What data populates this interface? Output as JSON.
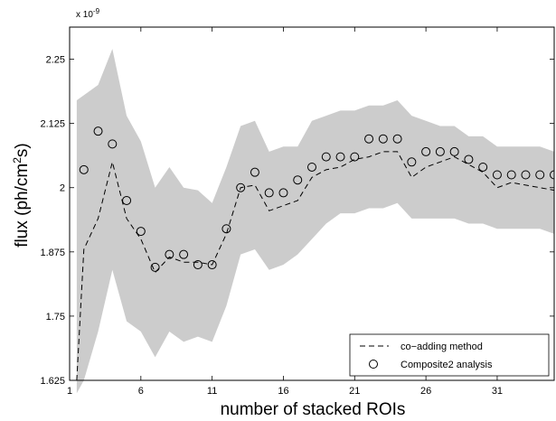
{
  "chart_data": {
    "type": "line",
    "xlabel": "number of stacked ROIs",
    "ylabel": "flux (ph/cm²s)",
    "ylabel_parts": {
      "pre": "flux (ph/cm",
      "sup": "2",
      "post": "s)"
    },
    "y_scale_note": "x 10",
    "y_scale_exp": "-9",
    "xlim": [
      1,
      35
    ],
    "ylim": [
      1.625,
      2.3125
    ],
    "x_ticks": [
      1,
      6,
      11,
      16,
      21,
      26,
      31
    ],
    "x_tick_labels": [
      "1",
      "6",
      "11",
      "16",
      "21",
      "26",
      "31"
    ],
    "y_ticks": [
      1.625,
      1.75,
      1.875,
      2,
      2.125,
      2.25
    ],
    "y_tick_labels": [
      "1.625",
      "1.75",
      "1.875",
      "2",
      "2.125",
      "2.25"
    ],
    "legend_position": "bottom-right",
    "band_color": "#cccccc",
    "band": {
      "x": [
        1.5,
        2,
        3,
        4,
        5,
        6,
        7,
        8,
        9,
        10,
        11,
        12,
        13,
        14,
        15,
        16,
        17,
        18,
        19,
        20,
        21,
        22,
        23,
        24,
        25,
        26,
        27,
        28,
        29,
        30,
        31,
        32,
        33,
        34,
        35
      ],
      "upper": [
        2.17,
        2.18,
        2.2,
        2.27,
        2.14,
        2.09,
        2.0,
        2.04,
        2.0,
        1.995,
        1.97,
        2.04,
        2.12,
        2.13,
        2.07,
        2.08,
        2.08,
        2.13,
        2.14,
        2.15,
        2.15,
        2.16,
        2.16,
        2.17,
        2.14,
        2.13,
        2.12,
        2.12,
        2.1,
        2.1,
        2.08,
        2.08,
        2.08,
        2.08,
        2.07
      ],
      "lower": [
        1.6,
        1.625,
        1.72,
        1.84,
        1.74,
        1.72,
        1.67,
        1.72,
        1.7,
        1.71,
        1.7,
        1.77,
        1.87,
        1.88,
        1.84,
        1.85,
        1.87,
        1.9,
        1.93,
        1.95,
        1.95,
        1.96,
        1.96,
        1.97,
        1.94,
        1.94,
        1.94,
        1.94,
        1.93,
        1.93,
        1.92,
        1.92,
        1.92,
        1.92,
        1.91
      ]
    },
    "series": [
      {
        "name": "co−adding method",
        "style": "dashed-line",
        "x": [
          1.5,
          2,
          3,
          4,
          5,
          6,
          7,
          8,
          9,
          10,
          11,
          12,
          13,
          14,
          15,
          16,
          17,
          18,
          19,
          20,
          21,
          22,
          23,
          24,
          25,
          26,
          27,
          28,
          29,
          30,
          31,
          32,
          33,
          34,
          35
        ],
        "y": [
          1.625,
          1.88,
          1.94,
          2.05,
          1.94,
          1.9,
          1.835,
          1.865,
          1.855,
          1.855,
          1.85,
          1.91,
          2.0,
          2.005,
          1.955,
          1.965,
          1.975,
          2.02,
          2.035,
          2.04,
          2.055,
          2.06,
          2.07,
          2.07,
          2.02,
          2.04,
          2.05,
          2.06,
          2.045,
          2.03,
          2.0,
          2.01,
          2.005,
          2.0,
          1.995
        ]
      },
      {
        "name": "Composite2 analysis",
        "style": "open-circle",
        "x": [
          2,
          3,
          4,
          5,
          6,
          7,
          8,
          9,
          10,
          11,
          12,
          13,
          14,
          15,
          16,
          17,
          18,
          19,
          20,
          21,
          22,
          23,
          24,
          25,
          26,
          27,
          28,
          29,
          30,
          31,
          32,
          33,
          34,
          35
        ],
        "y": [
          2.035,
          2.11,
          2.085,
          1.975,
          1.915,
          1.845,
          1.87,
          1.87,
          1.85,
          1.85,
          1.92,
          2.0,
          2.03,
          1.99,
          1.99,
          2.015,
          2.04,
          2.06,
          2.06,
          2.06,
          2.095,
          2.095,
          2.095,
          2.05,
          2.07,
          2.07,
          2.07,
          2.055,
          2.04,
          2.025,
          2.025,
          2.025,
          2.025,
          2.025
        ]
      }
    ]
  }
}
